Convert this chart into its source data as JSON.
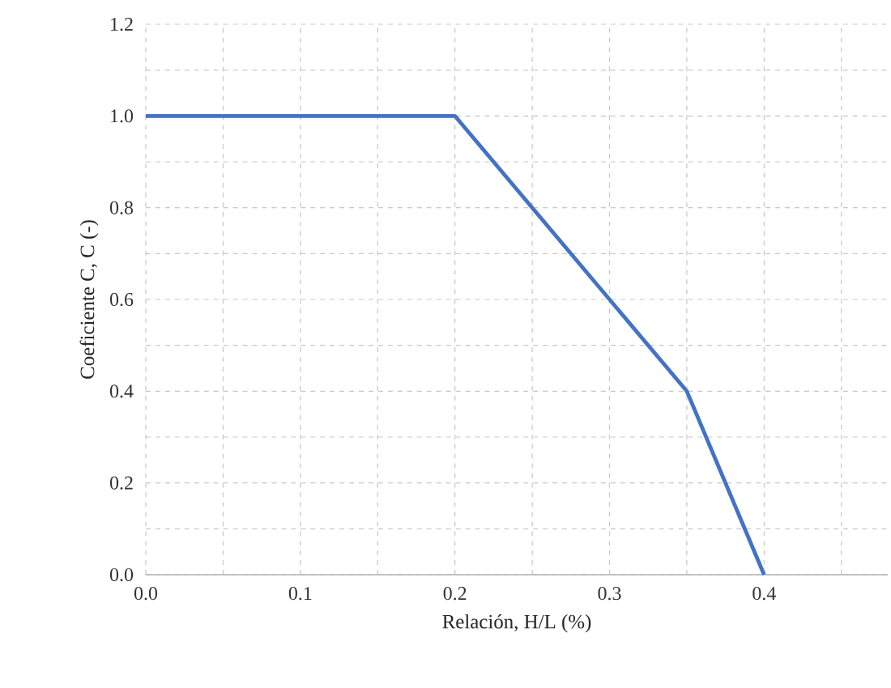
{
  "chart_data": {
    "type": "line",
    "xlabel": "Relación, H/L (%)",
    "ylabel": "Coeficiente C, C (-)",
    "x": [
      0,
      0.2,
      0.35,
      0.4
    ],
    "series": [
      {
        "color": "#4472c4",
        "values": [
          1.0,
          1.0,
          0.4,
          0.0
        ]
      }
    ],
    "xlim": [
      0,
      0.48
    ],
    "ylim": [
      0,
      1.2
    ],
    "xticks": [
      {
        "value": 0,
        "label": "0.0"
      },
      {
        "value": 0.05,
        "label": null
      },
      {
        "value": 0.1,
        "label": "0.1"
      },
      {
        "value": 0.15,
        "label": null
      },
      {
        "value": 0.2,
        "label": "0.2"
      },
      {
        "value": 0.25,
        "label": null
      },
      {
        "value": 0.3,
        "label": "0.3"
      },
      {
        "value": 0.35,
        "label": null
      },
      {
        "value": 0.4,
        "label": "0.4"
      },
      {
        "value": 0.45,
        "label": null
      }
    ],
    "yticks": [
      {
        "value": 0,
        "label": "0.0"
      },
      {
        "value": 0.1,
        "label": null
      },
      {
        "value": 0.2,
        "label": "0.2"
      },
      {
        "value": 0.3,
        "label": null
      },
      {
        "value": 0.4,
        "label": "0.4"
      },
      {
        "value": 0.5,
        "label": null
      },
      {
        "value": 0.6,
        "label": "0.6"
      },
      {
        "value": 0.7,
        "label": null
      },
      {
        "value": 0.8,
        "label": "0.8"
      },
      {
        "value": 0.9,
        "label": null
      },
      {
        "value": 1.0,
        "label": "1.0"
      },
      {
        "value": 1.1,
        "label": null
      },
      {
        "value": 1.2,
        "label": "1.2"
      }
    ],
    "grid": true,
    "line_style": "solid"
  }
}
